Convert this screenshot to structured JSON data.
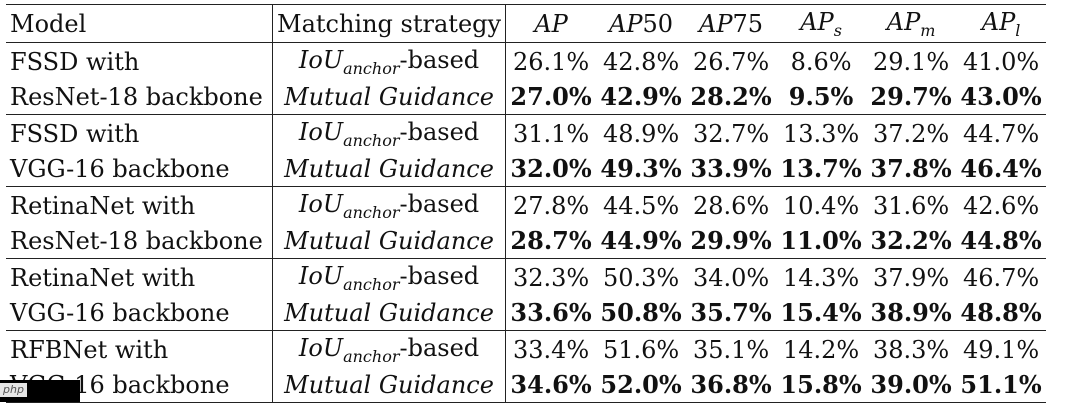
{
  "headers": {
    "model": "Model",
    "strategy": "Matching strategy",
    "ap": "AP",
    "ap_base": "AP",
    "ap50_suffix": "50",
    "ap75_suffix": "75",
    "aps_sub": "s",
    "apm_sub": "m",
    "apl_sub": "l"
  },
  "strategy_labels": {
    "iou_base": "IoU",
    "iou_sub": "anchor",
    "iou_suffix": "-based",
    "mutual": "Mutual Guidance"
  },
  "rows": [
    {
      "model": "FSSD with",
      "strategy": "iou",
      "values": [
        "26.1%",
        "42.8%",
        "26.7%",
        "8.6%",
        "29.1%",
        "41.0%"
      ]
    },
    {
      "model": "ResNet-18 backbone",
      "strategy": "mutual",
      "values": [
        "27.0%",
        "42.9%",
        "28.2%",
        "9.5%",
        "29.7%",
        "43.0%"
      ]
    },
    {
      "model": "FSSD with",
      "strategy": "iou",
      "values": [
        "31.1%",
        "48.9%",
        "32.7%",
        "13.3%",
        "37.2%",
        "44.7%"
      ]
    },
    {
      "model": "VGG-16 backbone",
      "strategy": "mutual",
      "values": [
        "32.0%",
        "49.3%",
        "33.9%",
        "13.7%",
        "37.8%",
        "46.4%"
      ]
    },
    {
      "model": "RetinaNet with",
      "strategy": "iou",
      "values": [
        "27.8%",
        "44.5%",
        "28.6%",
        "10.4%",
        "31.6%",
        "42.6%"
      ]
    },
    {
      "model": "ResNet-18 backbone",
      "strategy": "mutual",
      "values": [
        "28.7%",
        "44.9%",
        "29.9%",
        "11.0%",
        "32.2%",
        "44.8%"
      ]
    },
    {
      "model": "RetinaNet with",
      "strategy": "iou",
      "values": [
        "32.3%",
        "50.3%",
        "34.0%",
        "14.3%",
        "37.9%",
        "46.7%"
      ]
    },
    {
      "model": "VGG-16 backbone",
      "strategy": "mutual",
      "values": [
        "33.6%",
        "50.8%",
        "35.7%",
        "15.4%",
        "38.9%",
        "48.8%"
      ]
    },
    {
      "model": "RFBNet with",
      "strategy": "iou",
      "values": [
        "33.4%",
        "51.6%",
        "35.1%",
        "14.2%",
        "38.3%",
        "49.1%"
      ]
    },
    {
      "model": "VGG-16 backbone",
      "strategy": "mutual",
      "values": [
        "34.6%",
        "52.0%",
        "36.8%",
        "15.8%",
        "39.0%",
        "51.1%"
      ]
    }
  ],
  "watermark": "php"
}
